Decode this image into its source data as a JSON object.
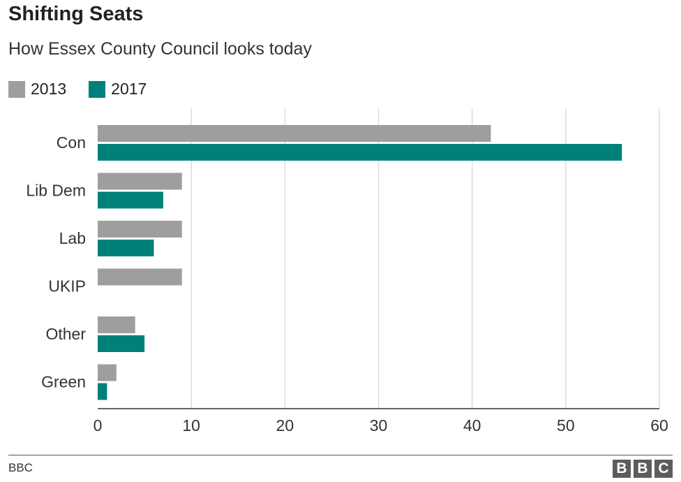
{
  "chart_data": {
    "type": "bar",
    "orientation": "horizontal",
    "title": "Shifting Seats",
    "subtitle": "How Essex County Council looks today",
    "categories": [
      "Con",
      "Lib Dem",
      "Lab",
      "UKIP",
      "Other",
      "Green"
    ],
    "series": [
      {
        "name": "2013",
        "color": "#9e9e9e",
        "values": [
          42,
          9,
          9,
          9,
          4,
          2
        ]
      },
      {
        "name": "2017",
        "color": "#00807a",
        "values": [
          56,
          7,
          6,
          0,
          5,
          1
        ]
      }
    ],
    "xlim": [
      0,
      60
    ],
    "xticks": [
      0,
      10,
      20,
      30,
      40,
      50,
      60
    ],
    "grid": true,
    "legend_position": "top-left"
  },
  "footer": {
    "source": "BBC",
    "logo_letters": [
      "B",
      "B",
      "C"
    ]
  }
}
